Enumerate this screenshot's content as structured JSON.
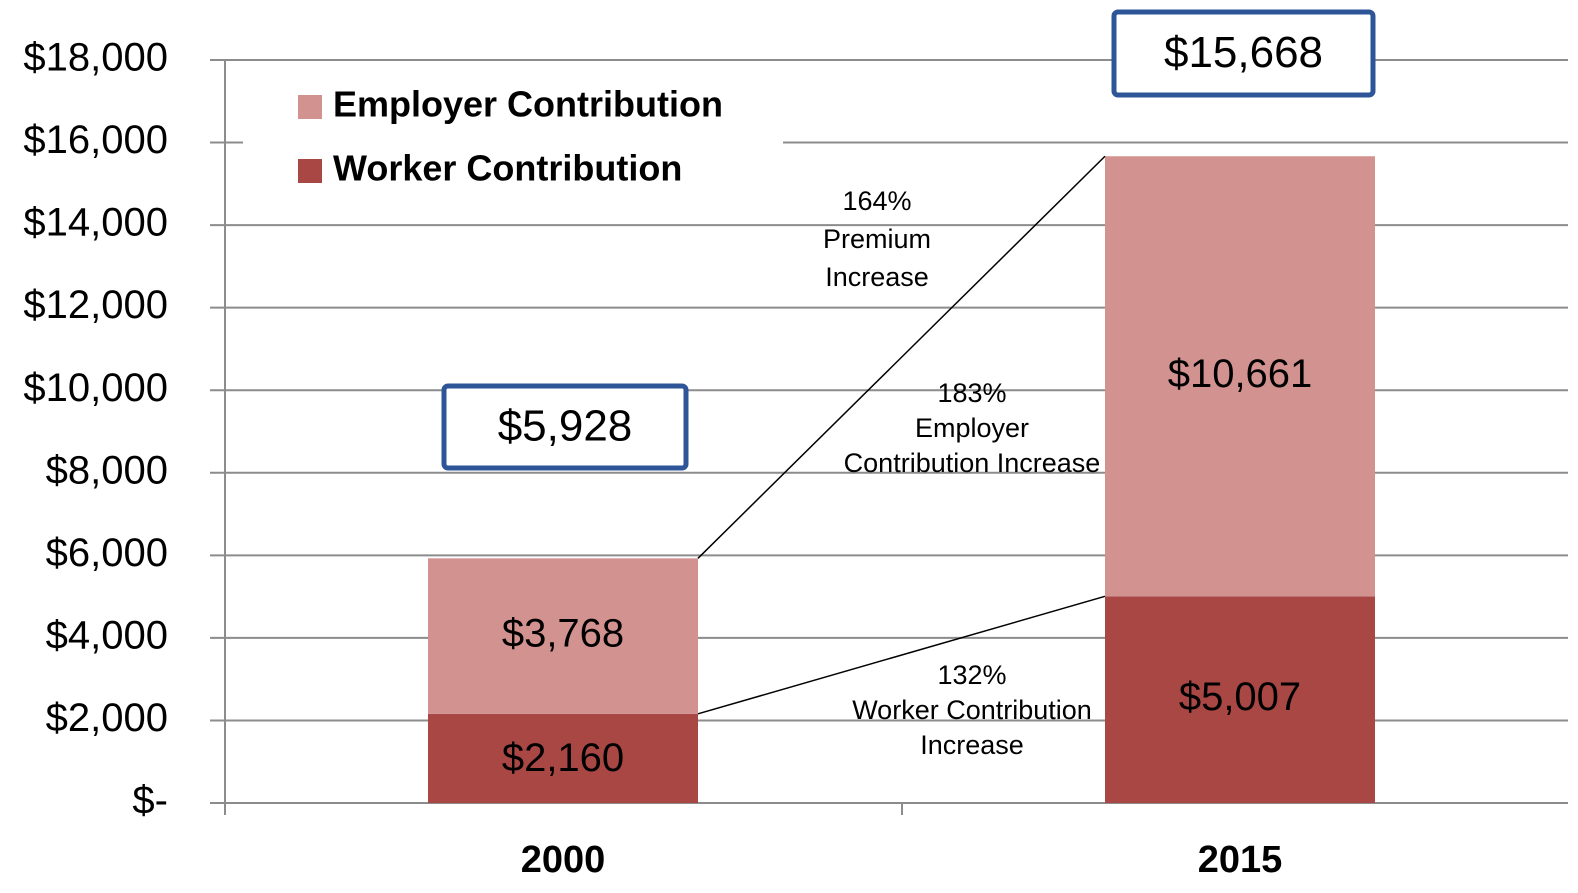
{
  "chart_data": {
    "type": "stacked_bar",
    "categories": [
      "2000",
      "2015"
    ],
    "series": [
      {
        "name": "Worker Contribution",
        "color": "#a84744",
        "values": [
          2160,
          5007
        ],
        "value_labels": [
          "$2,160",
          "$5,007"
        ]
      },
      {
        "name": "Employer Contribution",
        "color": "#d29290",
        "values": [
          3768,
          10661
        ],
        "value_labels": [
          "$3,768",
          "$10,661"
        ]
      }
    ],
    "totals": {
      "values": [
        5928,
        15668
      ],
      "value_labels": [
        "$5,928",
        "$15,668"
      ]
    },
    "annotations": [
      [
        "164%",
        "Premium",
        "Increase"
      ],
      [
        "183%",
        "Employer",
        "Contribution Increase"
      ],
      [
        "132%",
        "Worker Contribution",
        "Increase"
      ]
    ],
    "ylim": [
      0,
      18000
    ],
    "yticks": [
      {
        "value": 0,
        "label": "$-"
      },
      {
        "value": 2000,
        "label": "$2,000"
      },
      {
        "value": 4000,
        "label": "$4,000"
      },
      {
        "value": 6000,
        "label": "$6,000"
      },
      {
        "value": 8000,
        "label": "$8,000"
      },
      {
        "value": 10000,
        "label": "$10,000"
      },
      {
        "value": 12000,
        "label": "$12,000"
      },
      {
        "value": 14000,
        "label": "$14,000"
      },
      {
        "value": 16000,
        "label": "$16,000"
      },
      {
        "value": 18000,
        "label": "$18,000"
      }
    ],
    "grid": true,
    "legend": "top-left"
  }
}
